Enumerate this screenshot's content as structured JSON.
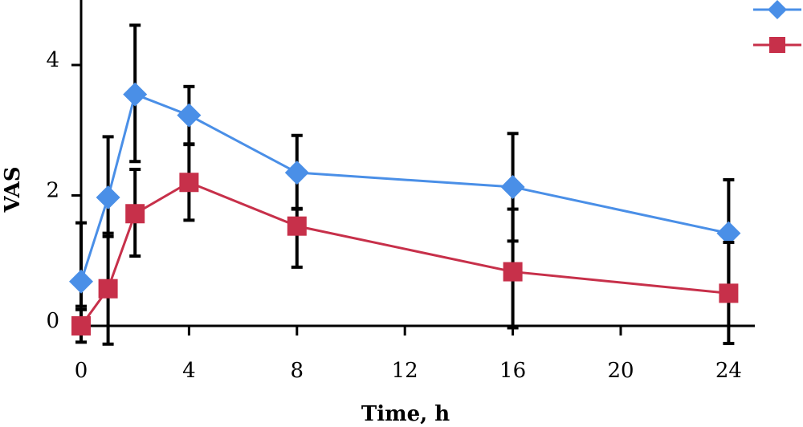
{
  "chart_data": {
    "type": "line",
    "title": "",
    "xlabel": "Time, h",
    "ylabel": "VAS",
    "xlim": [
      0,
      25
    ],
    "ylim": [
      0,
      5
    ],
    "x_ticks": [
      0,
      4,
      8,
      12,
      16,
      20,
      24
    ],
    "y_ticks": [
      0,
      2,
      4
    ],
    "legend_position": "top-right",
    "series": [
      {
        "color": "#4a8fe7",
        "marker": "diamond",
        "x": [
          0,
          1,
          2,
          4,
          8,
          16,
          24
        ],
        "y": [
          0.68,
          1.97,
          3.55,
          3.23,
          2.35,
          2.13,
          1.42
        ],
        "err_low": [
          0.38,
          0.6,
          1.03,
          0.45,
          0.56,
          0.83,
          0.97
        ],
        "err_high": [
          0.9,
          0.93,
          1.06,
          0.44,
          0.57,
          0.82,
          0.82
        ]
      },
      {
        "color": "#c7304a",
        "marker": "square",
        "x": [
          0,
          1,
          2,
          4,
          8,
          16,
          24
        ],
        "y": [
          0.0,
          0.57,
          1.72,
          2.2,
          1.53,
          0.83,
          0.5
        ],
        "err_low": [
          0.25,
          0.85,
          0.65,
          0.58,
          0.63,
          0.86,
          0.77
        ],
        "err_high": [
          0.25,
          0.85,
          0.68,
          0.59,
          0.27,
          0.96,
          0.78
        ]
      }
    ]
  }
}
